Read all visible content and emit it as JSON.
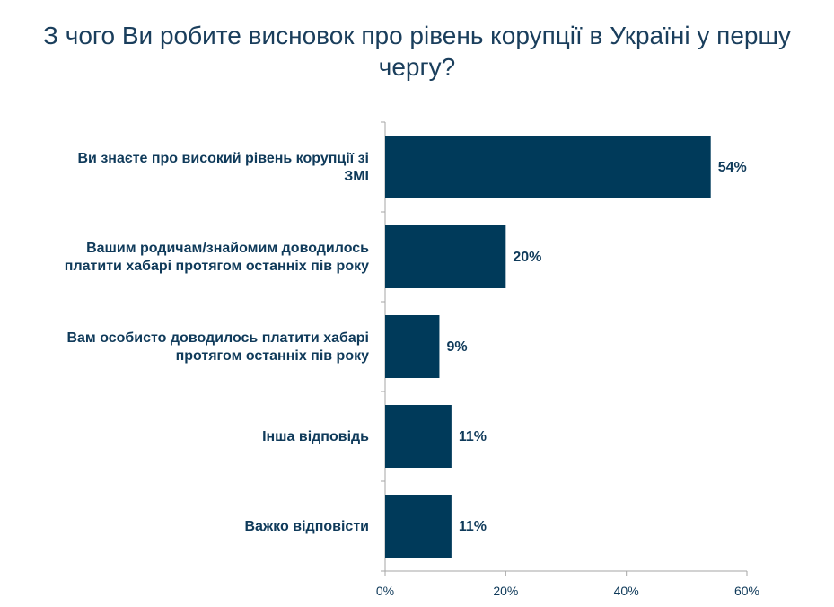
{
  "chart_data": {
    "type": "bar",
    "orientation": "horizontal",
    "title": "З чого Ви робите висновок про рівень корупції в Україні у першу чергу?",
    "categories": [
      [
        "Ви знаєте про високий рівень корупції зі",
        "ЗМІ"
      ],
      [
        "Вашим родичам/знайомим доводилось",
        "платити хабарі протягом останніх пів року"
      ],
      [
        "Вам особисто доводилось платити хабарі",
        "протягом останніх пів року"
      ],
      [
        "Інша відповідь"
      ],
      [
        "Важко відповісти"
      ]
    ],
    "values": [
      54,
      20,
      9,
      11,
      11
    ],
    "data_labels": [
      "54%",
      "20%",
      "9%",
      "11%",
      "11%"
    ],
    "xlim": [
      0,
      60
    ],
    "xticks": [
      0,
      20,
      40,
      60
    ],
    "xtick_labels": [
      "0%",
      "20%",
      "40%",
      "60%"
    ],
    "grid": false,
    "legend": "none",
    "colors": {
      "bar": "#003a5a",
      "axis": "#a6a6a6",
      "text": "#0f3a5a",
      "title": "#1a3e5c"
    }
  }
}
